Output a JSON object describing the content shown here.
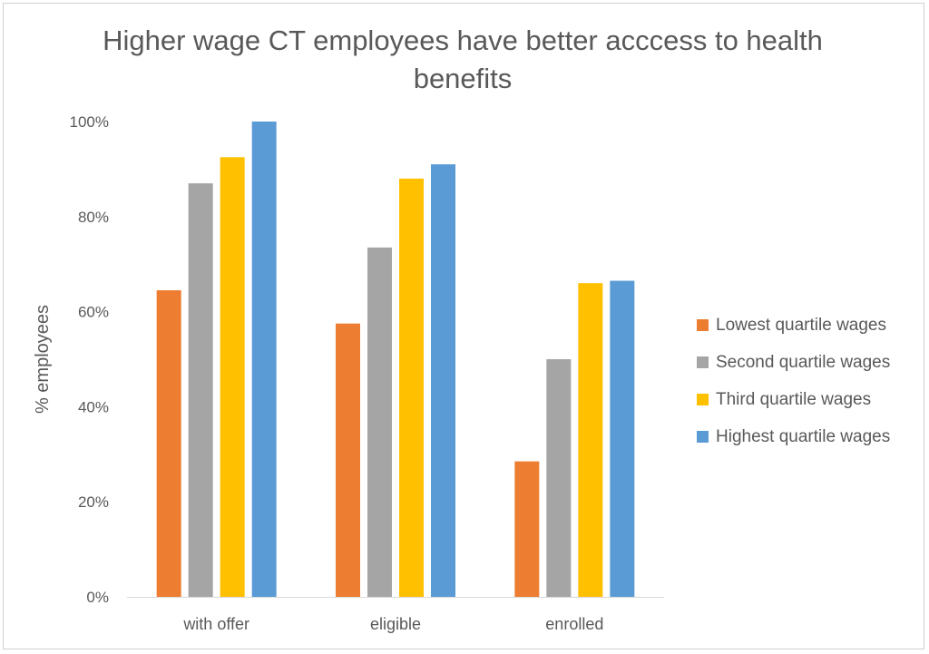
{
  "chart_data": {
    "type": "bar",
    "title": "Higher wage CT employees have better acccess to health benefits",
    "xlabel": "",
    "ylabel": "% employees",
    "ylim": [
      0,
      100
    ],
    "yticks": [
      "0%",
      "20%",
      "40%",
      "60%",
      "80%",
      "100%"
    ],
    "categories": [
      "with offer",
      "eligible",
      "enrolled"
    ],
    "series": [
      {
        "name": "Lowest quartile wages",
        "color": "#ED7D31",
        "values": [
          64.5,
          57.5,
          28.5
        ]
      },
      {
        "name": "Second quartile wages",
        "color": "#A5A5A5",
        "values": [
          87,
          73.5,
          50
        ]
      },
      {
        "name": "Third quartile wages",
        "color": "#FFC000",
        "values": [
          92.5,
          88,
          66
        ]
      },
      {
        "name": "Highest quartile wages",
        "color": "#5B9BD5",
        "values": [
          100,
          91,
          66.5
        ]
      }
    ],
    "grid": false,
    "legend_position": "right"
  }
}
